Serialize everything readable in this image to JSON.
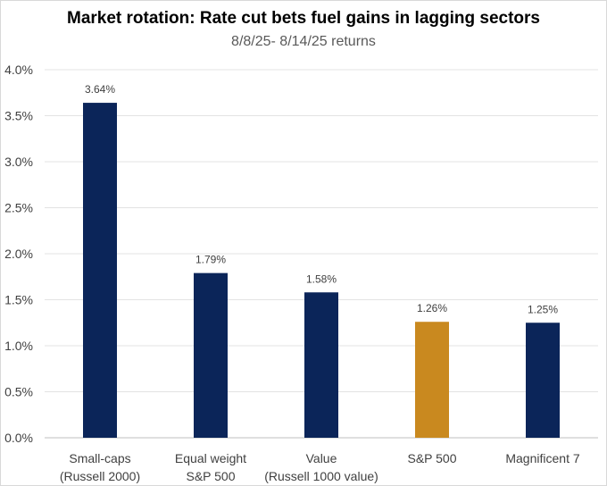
{
  "chart_data": {
    "type": "bar",
    "title": "Market rotation: Rate cut bets fuel gains in lagging sectors",
    "subtitle": "8/8/25- 8/14/25 returns",
    "categories": [
      [
        "Small-caps",
        "(Russell 2000)"
      ],
      [
        "Equal weight",
        "S&P 500"
      ],
      [
        "Value",
        "(Russell 1000 value)"
      ],
      [
        "S&P 500"
      ],
      [
        "Magnificent 7"
      ]
    ],
    "values": [
      3.64,
      1.79,
      1.58,
      1.26,
      1.25
    ],
    "data_labels": [
      "3.64%",
      "1.79%",
      "1.58%",
      "1.26%",
      "1.25%"
    ],
    "bar_colors": [
      "#0b2559",
      "#0b2559",
      "#0b2559",
      "#c9891f",
      "#0b2559"
    ],
    "ylim": [
      0,
      4
    ],
    "yticks": [
      "0.0%",
      "0.5%",
      "1.0%",
      "1.5%",
      "2.0%",
      "2.5%",
      "3.0%",
      "3.5%",
      "4.0%"
    ],
    "grid": true
  }
}
